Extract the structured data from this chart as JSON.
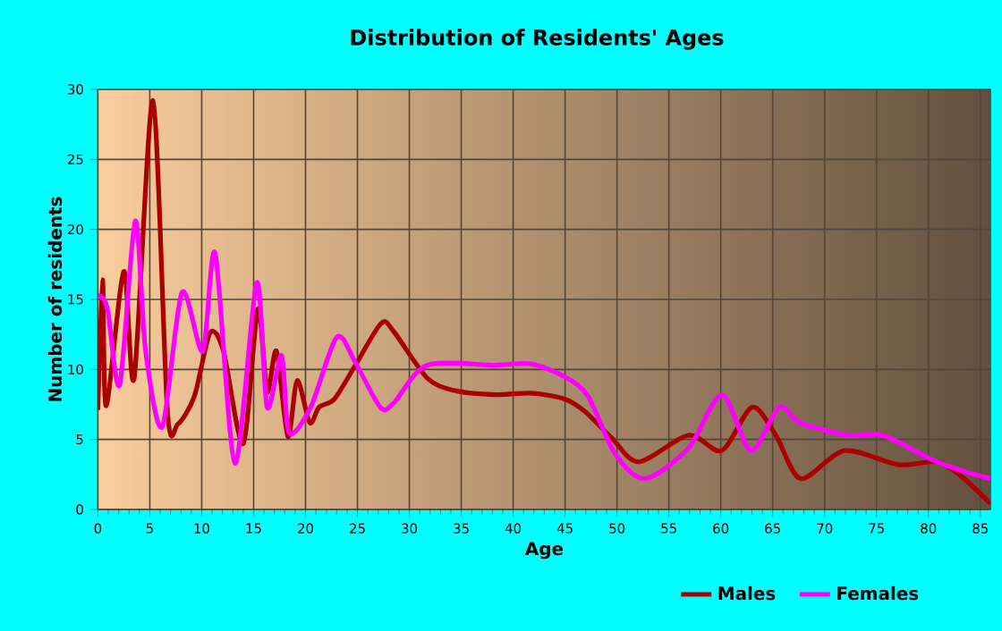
{
  "chart_data": {
    "type": "line",
    "title": "Distribution of Residents' Ages",
    "xlabel": "Age",
    "ylabel": "Number of residents",
    "xlim": [
      0,
      86
    ],
    "ylim": [
      0,
      30
    ],
    "xticks": [
      0,
      5,
      10,
      15,
      20,
      25,
      30,
      35,
      40,
      45,
      50,
      55,
      60,
      65,
      70,
      75,
      80,
      85
    ],
    "yticks": [
      0,
      5,
      10,
      15,
      20,
      25,
      30
    ],
    "grid": true,
    "legend": "bottom",
    "marker": "none",
    "line_style": "solid",
    "series": [
      {
        "name": "Males",
        "color": "#aa0000",
        "x": [
          0,
          0.45,
          0.8,
          2.5,
          3.5,
          5.3,
          6.7,
          7.7,
          9.3,
          10.8,
          12.1,
          14,
          15.4,
          16.3,
          17.2,
          18.3,
          19.2,
          20.4,
          21.3,
          22.8,
          24.8,
          27.3,
          28.5,
          31.7,
          34.3,
          38.3,
          41.7,
          44.9,
          46.9,
          49.5,
          52.1,
          56.9,
          60.1,
          63,
          65.3,
          67.7,
          71.9,
          77.1,
          80.8,
          83.1,
          86
        ],
        "values": [
          7.1,
          16.4,
          7.4,
          17,
          9.4,
          29.2,
          7,
          6.1,
          8.1,
          12.6,
          11.3,
          4.7,
          14.3,
          8.4,
          11.3,
          5.2,
          9.2,
          6.2,
          7.3,
          7.9,
          10.3,
          13.3,
          12.7,
          9.4,
          8.5,
          8.2,
          8.3,
          7.9,
          7,
          5.1,
          3.4,
          5.3,
          4.2,
          7.3,
          5.3,
          2.2,
          4.2,
          3.2,
          3.4,
          2.4,
          0.4
        ]
      },
      {
        "name": "Females",
        "color": "#ff00ff",
        "x": [
          0,
          0.9,
          2.1,
          3.6,
          4.6,
          6.2,
          8.1,
          10.1,
          11.3,
          13.2,
          15.3,
          16.3,
          17.7,
          18.4,
          20.5,
          23,
          24.8,
          27.2,
          28.5,
          31.7,
          38.3,
          41.7,
          44.9,
          47.2,
          49.8,
          52.7,
          56.9,
          60.1,
          62.9,
          65.6,
          67.6,
          72.2,
          75.6,
          80.2,
          83.1,
          86
        ],
        "values": [
          15.3,
          14.4,
          8.9,
          20.6,
          11.3,
          5.9,
          15.5,
          11.3,
          18.3,
          3.3,
          16.2,
          7.3,
          11,
          5.5,
          7.3,
          12.3,
          10.5,
          7.3,
          7.6,
          10.3,
          10.3,
          10.4,
          9.5,
          8.1,
          4,
          2.2,
          4.4,
          8.2,
          4.2,
          7.3,
          6.2,
          5.3,
          5.3,
          3.6,
          2.8,
          2.2
        ]
      }
    ]
  }
}
